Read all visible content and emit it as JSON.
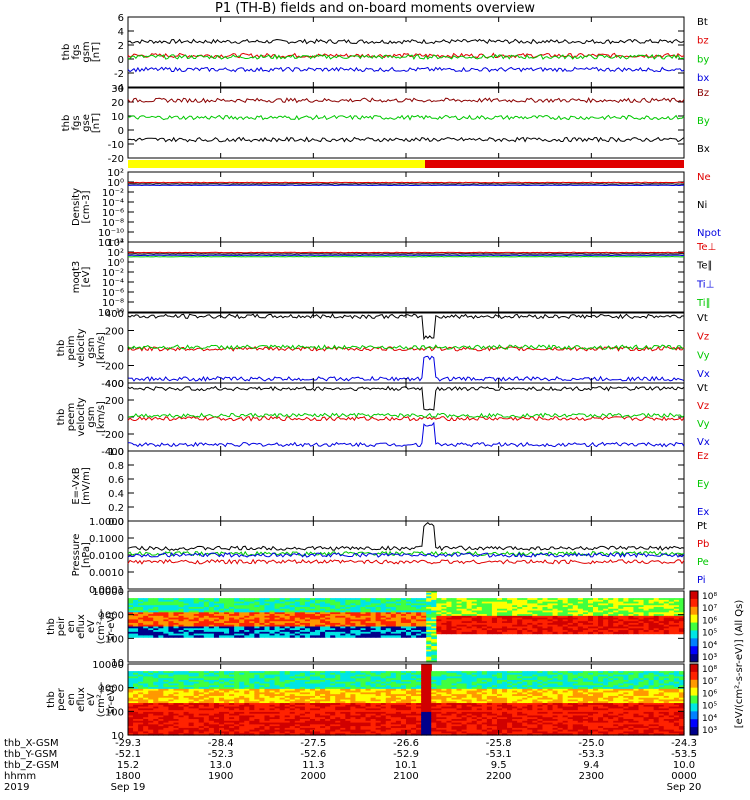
{
  "title": "P1 (TH-B) fields and on-board moments overview",
  "colors": {
    "black": "#000000",
    "red": "#e00000",
    "green": "#00c800",
    "blue": "#0000e0",
    "darkred": "#8b0000",
    "yellow": "#ffff00",
    "barred": "#e00000"
  },
  "chart_data": [
    {
      "type": "line",
      "ylabel": [
        "thb",
        "fgs",
        "gsm",
        "[nT]"
      ],
      "ylim": [
        -4,
        6
      ],
      "yticks": [
        "6",
        "4",
        "2",
        "0",
        "-2",
        "-4"
      ],
      "series": [
        {
          "name": "Bt",
          "color": "#000000",
          "approx_level": 2.5
        },
        {
          "name": "bz",
          "color": "#e00000",
          "approx_level": 0.5
        },
        {
          "name": "by",
          "color": "#00c800",
          "approx_level": 0.3
        },
        {
          "name": "bx",
          "color": "#0000e0",
          "approx_level": -1.5
        }
      ]
    },
    {
      "type": "line",
      "ylabel": [
        "thb",
        "fgs",
        "gse",
        "[nT]"
      ],
      "ylim": [
        -25,
        32
      ],
      "yticks": [
        "30",
        "20",
        "10",
        "0",
        "-10",
        "-20"
      ],
      "series": [
        {
          "name": "Bz",
          "color": "#8b0000",
          "approx_level": 22
        },
        {
          "name": "By",
          "color": "#00c800",
          "approx_level": 8
        },
        {
          "name": "Bx",
          "color": "#000000",
          "approx_level": -10
        }
      ]
    },
    {
      "type": "line",
      "ylabel": [
        "Density",
        "[cm-3]"
      ],
      "ylim": [
        -14,
        2
      ],
      "log": true,
      "yticks": [
        "10²",
        "10⁰",
        "10⁻²",
        "10⁻⁴",
        "10⁻⁶",
        "10⁻⁸",
        "10⁻¹⁰",
        "10⁻¹²"
      ],
      "series": [
        {
          "name": "Ne",
          "color": "#e00000"
        },
        {
          "name": "Ni",
          "color": "#000000"
        },
        {
          "name": "Npot",
          "color": "#0000e0"
        }
      ]
    },
    {
      "type": "line",
      "ylabel": [
        "moqt3",
        "[eV]"
      ],
      "ylim": [
        -14,
        4
      ],
      "log": true,
      "yticks": [
        "10⁴",
        "10²",
        "10⁰",
        "10⁻²",
        "10⁻⁴",
        "10⁻⁶",
        "10⁻⁸",
        "10⁻¹⁰"
      ],
      "series": [
        {
          "name": "Te⊥",
          "color": "#e00000"
        },
        {
          "name": "Te∥",
          "color": "#000000"
        },
        {
          "name": "Ti⊥",
          "color": "#0000e0"
        },
        {
          "name": "Ti∥",
          "color": "#00c800"
        }
      ]
    },
    {
      "type": "line",
      "ylabel": [
        "thb",
        "peim",
        "velocity",
        "gsm",
        "[km/s]"
      ],
      "ylim": [
        -420,
        420
      ],
      "yticks": [
        "400",
        "200",
        "0",
        "-200",
        "-400"
      ],
      "series": [
        {
          "name": "Vt",
          "color": "#000000",
          "approx_level": 380
        },
        {
          "name": "Vz",
          "color": "#e00000",
          "approx_level": -10
        },
        {
          "name": "Vy",
          "color": "#00c800",
          "approx_level": 10
        },
        {
          "name": "Vx",
          "color": "#0000e0",
          "approx_level": -370
        }
      ]
    },
    {
      "type": "line",
      "ylabel": [
        "thb",
        "peem",
        "velocity",
        "gsm",
        "[km/s]"
      ],
      "ylim": [
        -420,
        420
      ],
      "yticks": [
        "400",
        "200",
        "0",
        "-200",
        "-400"
      ],
      "series": [
        {
          "name": "Vt",
          "color": "#000000",
          "approx_level": 350
        },
        {
          "name": "Vz",
          "color": "#e00000",
          "approx_level": -20
        },
        {
          "name": "Vy",
          "color": "#00c800",
          "approx_level": 20
        },
        {
          "name": "Vx",
          "color": "#0000e0",
          "approx_level": -340
        }
      ]
    },
    {
      "type": "line",
      "ylabel": [
        "E=-VxB",
        "[mV/m]"
      ],
      "ylim": [
        0,
        1
      ],
      "yticks": [
        "1.0",
        "0.8",
        "0.6",
        "0.4",
        "0.2",
        "0.0"
      ],
      "series": [
        {
          "name": "Ez",
          "color": "#e00000"
        },
        {
          "name": "Ey",
          "color": "#00c800"
        },
        {
          "name": "Ex",
          "color": "#0000e0"
        }
      ]
    },
    {
      "type": "line",
      "ylabel": [
        "Pressure",
        "[nPa]"
      ],
      "ylim": [
        -4,
        0
      ],
      "log": true,
      "yticks": [
        "1.0000",
        "0.1000",
        "0.0100",
        "0.0010",
        "0.0001"
      ],
      "series": [
        {
          "name": "Pt",
          "color": "#000000",
          "approx_level": 0.025
        },
        {
          "name": "Pb",
          "color": "#e00000",
          "approx_level": 0.004
        },
        {
          "name": "Pe",
          "color": "#00c800",
          "approx_level": 0.012
        },
        {
          "name": "Pi",
          "color": "#0000e0",
          "approx_level": 0.01
        }
      ]
    },
    {
      "type": "heatmap",
      "ylabel": [
        "thb",
        "peir",
        "en",
        "eflux",
        "eV",
        "(cm²-s-",
        "sr-eV)"
      ],
      "ylim": [
        1,
        4.3
      ],
      "log": true,
      "yticks": [
        "10000",
        "1000",
        "100",
        "10"
      ]
    },
    {
      "type": "heatmap",
      "ylabel": [
        "thb",
        "peer",
        "en",
        "eflux",
        "eV",
        "(cm²-s-",
        "sr-eV)"
      ],
      "ylim": [
        0.7,
        4.3
      ],
      "log": true,
      "yticks": [
        "10000",
        "1000",
        "100",
        "10"
      ]
    }
  ],
  "colorbar": {
    "label": "[eV/(cm²-s-sr-eV)] (All Qs)",
    "ticks": [
      "10⁸",
      "10⁷",
      "10⁶",
      "10⁵",
      "10⁴",
      "10³"
    ]
  },
  "xaxis": {
    "row_labels": [
      "thb_X-GSM",
      "thb_Y-GSM",
      "thb_Z-GSM",
      "hhmm",
      "2019"
    ],
    "columns": [
      [
        "-29.3",
        "-52.1",
        "15.2",
        "1800",
        "Sep 19"
      ],
      [
        "-28.4",
        "-52.3",
        "13.0",
        "1900",
        ""
      ],
      [
        "-27.5",
        "-52.6",
        "11.3",
        "2000",
        ""
      ],
      [
        "-26.6",
        "-52.9",
        "10.1",
        "2100",
        ""
      ],
      [
        "-25.8",
        "-53.1",
        "9.5",
        "2200",
        ""
      ],
      [
        "-25.0",
        "-53.3",
        "9.4",
        "2300",
        ""
      ],
      [
        "-24.3",
        "-53.5",
        "10.0",
        "0000",
        "Sep 20"
      ]
    ]
  }
}
